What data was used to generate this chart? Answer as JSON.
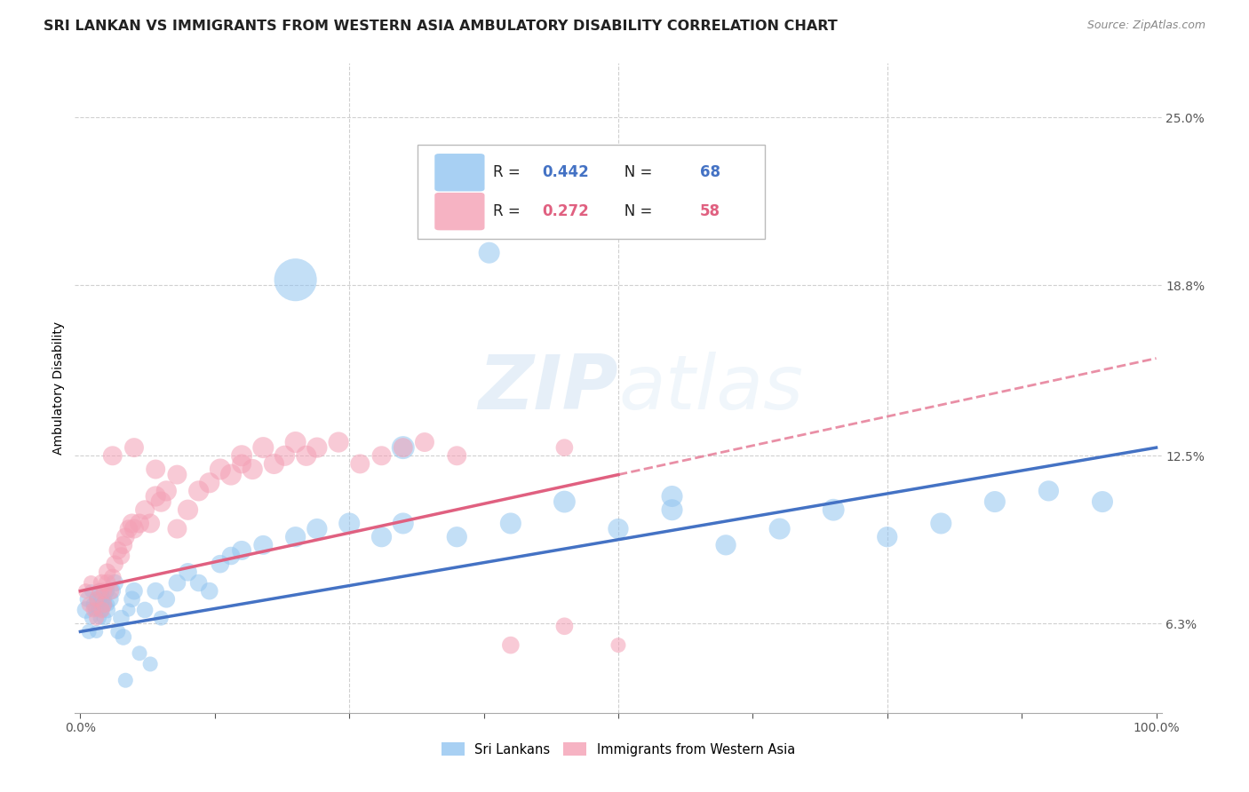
{
  "title": "SRI LANKAN VS IMMIGRANTS FROM WESTERN ASIA AMBULATORY DISABILITY CORRELATION CHART",
  "source": "Source: ZipAtlas.com",
  "ylabel": "Ambulatory Disability",
  "watermark_zip": "ZIP",
  "watermark_atlas": "atlas",
  "xlim": [
    0.0,
    1.0
  ],
  "ylim": [
    0.03,
    0.27
  ],
  "yticks": [
    0.063,
    0.125,
    0.188,
    0.25
  ],
  "ytick_labels": [
    "6.3%",
    "12.5%",
    "18.8%",
    "25.0%"
  ],
  "xtick_labels": [
    "0.0%",
    "100.0%"
  ],
  "xtick_vals": [
    0.0,
    1.0
  ],
  "legend_blue_r": "R = 0.442",
  "legend_blue_n": "N = 68",
  "legend_pink_r": "R = 0.272",
  "legend_pink_n": "N = 58",
  "blue_color": "#92C5F0",
  "pink_color": "#F4A0B5",
  "blue_line_color": "#4472C4",
  "pink_line_color": "#E06080",
  "background_color": "#ffffff",
  "grid_color": "#d0d0d0",
  "label_blue": "Sri Lankans",
  "label_pink": "Immigrants from Western Asia",
  "blue_scatter_x": [
    0.005,
    0.007,
    0.008,
    0.01,
    0.01,
    0.012,
    0.013,
    0.015,
    0.015,
    0.016,
    0.018,
    0.018,
    0.019,
    0.02,
    0.02,
    0.021,
    0.022,
    0.022,
    0.023,
    0.025,
    0.025,
    0.026,
    0.028,
    0.03,
    0.032,
    0.035,
    0.038,
    0.04,
    0.042,
    0.045,
    0.048,
    0.05,
    0.055,
    0.06,
    0.065,
    0.07,
    0.075,
    0.08,
    0.09,
    0.1,
    0.11,
    0.12,
    0.13,
    0.14,
    0.15,
    0.17,
    0.2,
    0.22,
    0.25,
    0.28,
    0.3,
    0.35,
    0.4,
    0.45,
    0.5,
    0.55,
    0.6,
    0.65,
    0.7,
    0.75,
    0.8,
    0.85,
    0.9,
    0.95,
    0.2,
    0.3,
    0.38,
    0.55
  ],
  "blue_scatter_y": [
    0.068,
    0.072,
    0.06,
    0.065,
    0.075,
    0.07,
    0.068,
    0.072,
    0.06,
    0.068,
    0.075,
    0.065,
    0.07,
    0.072,
    0.068,
    0.075,
    0.07,
    0.065,
    0.072,
    0.068,
    0.075,
    0.07,
    0.072,
    0.075,
    0.078,
    0.06,
    0.065,
    0.058,
    0.042,
    0.068,
    0.072,
    0.075,
    0.052,
    0.068,
    0.048,
    0.075,
    0.065,
    0.072,
    0.078,
    0.082,
    0.078,
    0.075,
    0.085,
    0.088,
    0.09,
    0.092,
    0.095,
    0.098,
    0.1,
    0.095,
    0.1,
    0.095,
    0.1,
    0.108,
    0.098,
    0.105,
    0.092,
    0.098,
    0.105,
    0.095,
    0.1,
    0.108,
    0.112,
    0.108,
    0.19,
    0.128,
    0.2,
    0.11
  ],
  "blue_scatter_size": [
    200,
    180,
    150,
    120,
    120,
    150,
    120,
    150,
    120,
    120,
    150,
    120,
    120,
    180,
    150,
    120,
    180,
    150,
    120,
    180,
    150,
    120,
    180,
    180,
    200,
    150,
    180,
    180,
    150,
    120,
    180,
    200,
    150,
    180,
    150,
    200,
    150,
    200,
    200,
    220,
    200,
    200,
    220,
    220,
    250,
    250,
    280,
    280,
    300,
    280,
    300,
    280,
    300,
    320,
    280,
    300,
    280,
    300,
    320,
    280,
    300,
    300,
    280,
    300,
    1200,
    350,
    300,
    300
  ],
  "pink_scatter_x": [
    0.005,
    0.008,
    0.01,
    0.012,
    0.015,
    0.015,
    0.018,
    0.02,
    0.02,
    0.022,
    0.022,
    0.025,
    0.025,
    0.028,
    0.03,
    0.032,
    0.035,
    0.038,
    0.04,
    0.042,
    0.045,
    0.048,
    0.05,
    0.055,
    0.06,
    0.065,
    0.07,
    0.075,
    0.08,
    0.09,
    0.1,
    0.11,
    0.12,
    0.13,
    0.14,
    0.15,
    0.16,
    0.17,
    0.18,
    0.19,
    0.2,
    0.21,
    0.22,
    0.24,
    0.26,
    0.28,
    0.3,
    0.32,
    0.35,
    0.4,
    0.45,
    0.5,
    0.03,
    0.05,
    0.07,
    0.09,
    0.15,
    0.45
  ],
  "pink_scatter_y": [
    0.075,
    0.07,
    0.078,
    0.068,
    0.072,
    0.065,
    0.075,
    0.078,
    0.068,
    0.075,
    0.07,
    0.078,
    0.082,
    0.075,
    0.08,
    0.085,
    0.09,
    0.088,
    0.092,
    0.095,
    0.098,
    0.1,
    0.098,
    0.1,
    0.105,
    0.1,
    0.11,
    0.108,
    0.112,
    0.098,
    0.105,
    0.112,
    0.115,
    0.12,
    0.118,
    0.125,
    0.12,
    0.128,
    0.122,
    0.125,
    0.13,
    0.125,
    0.128,
    0.13,
    0.122,
    0.125,
    0.128,
    0.13,
    0.125,
    0.055,
    0.062,
    0.055,
    0.125,
    0.128,
    0.12,
    0.118,
    0.122,
    0.128
  ],
  "pink_scatter_size": [
    150,
    150,
    150,
    150,
    150,
    150,
    180,
    200,
    180,
    180,
    180,
    200,
    200,
    200,
    200,
    200,
    220,
    200,
    220,
    220,
    220,
    250,
    250,
    250,
    250,
    250,
    280,
    280,
    280,
    250,
    280,
    280,
    280,
    300,
    300,
    300,
    280,
    300,
    280,
    280,
    300,
    280,
    280,
    280,
    250,
    250,
    250,
    250,
    250,
    200,
    200,
    150,
    250,
    250,
    250,
    250,
    250,
    200
  ],
  "blue_line_x0": 0.0,
  "blue_line_x1": 1.0,
  "blue_line_y0": 0.06,
  "blue_line_y1": 0.128,
  "pink_line_solid_x0": 0.0,
  "pink_line_solid_x1": 0.5,
  "pink_line_y0": 0.075,
  "pink_line_y1": 0.118,
  "pink_line_dash_x0": 0.5,
  "pink_line_dash_x1": 1.0,
  "pink_line_dash_y0": 0.118,
  "pink_line_dash_y1": 0.161,
  "title_fontsize": 11.5,
  "axis_label_fontsize": 10,
  "tick_fontsize": 10,
  "legend_fontsize": 12
}
